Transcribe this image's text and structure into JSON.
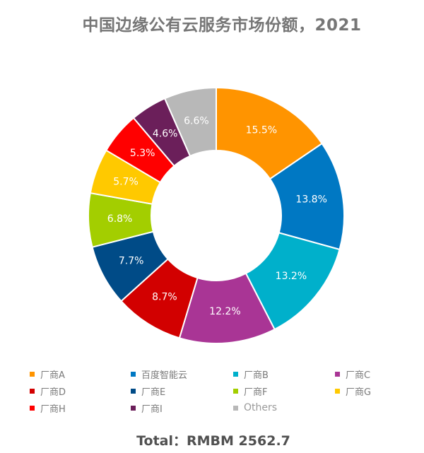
{
  "title": "中国边缘公有云服务市场份额，2021",
  "total_label": "Total：RMBM 2562.7",
  "chart_data": {
    "type": "pie",
    "subtype": "donut",
    "title": "中国边缘公有云服务市场份额，2021",
    "unit": "%",
    "start_angle_deg": 0,
    "direction": "clockwise",
    "center": [
      306,
      305
    ],
    "outer_radius": 181,
    "inner_radius": 92,
    "label_radius": 136.5,
    "categories": [
      "厂商A",
      "百度智能云",
      "厂商B",
      "厂商C",
      "厂商D",
      "厂商E",
      "厂商F",
      "厂商G",
      "厂商H",
      "厂商I",
      "Others"
    ],
    "values": [
      15.5,
      13.8,
      13.2,
      12.2,
      8.7,
      7.7,
      6.8,
      5.7,
      5.3,
      4.6,
      6.6
    ],
    "labels": [
      "15.5%",
      "13.8%",
      "13.2%",
      "12.2%",
      "8.7%",
      "7.7%",
      "6.8%",
      "5.7%",
      "5.3%",
      "4.6%",
      "6.6%"
    ],
    "colors": [
      "#FF9400",
      "#0078C3",
      "#00B0CB",
      "#A93595",
      "#D20000",
      "#004B87",
      "#A3CE00",
      "#FFC900",
      "#FF0000",
      "#6B1F5A",
      "#B8B8B8"
    ],
    "legend_position": "bottom",
    "total": "RMBM 2562.7"
  },
  "legend": {
    "items": [
      {
        "label": "厂商A",
        "color": "#FF9400"
      },
      {
        "label": "百度智能云",
        "color": "#0078C3"
      },
      {
        "label": "厂商B",
        "color": "#00B0CB"
      },
      {
        "label": "厂商C",
        "color": "#A93595"
      },
      {
        "label": "厂商D",
        "color": "#D20000"
      },
      {
        "label": "厂商E",
        "color": "#004B87"
      },
      {
        "label": "厂商F",
        "color": "#A3CE00"
      },
      {
        "label": "厂商G",
        "color": "#FFC900"
      },
      {
        "label": "厂商H",
        "color": "#FF0000"
      },
      {
        "label": "厂商I",
        "color": "#6B1F5A"
      },
      {
        "label": "Others",
        "color": "#B8B8B8"
      }
    ]
  }
}
